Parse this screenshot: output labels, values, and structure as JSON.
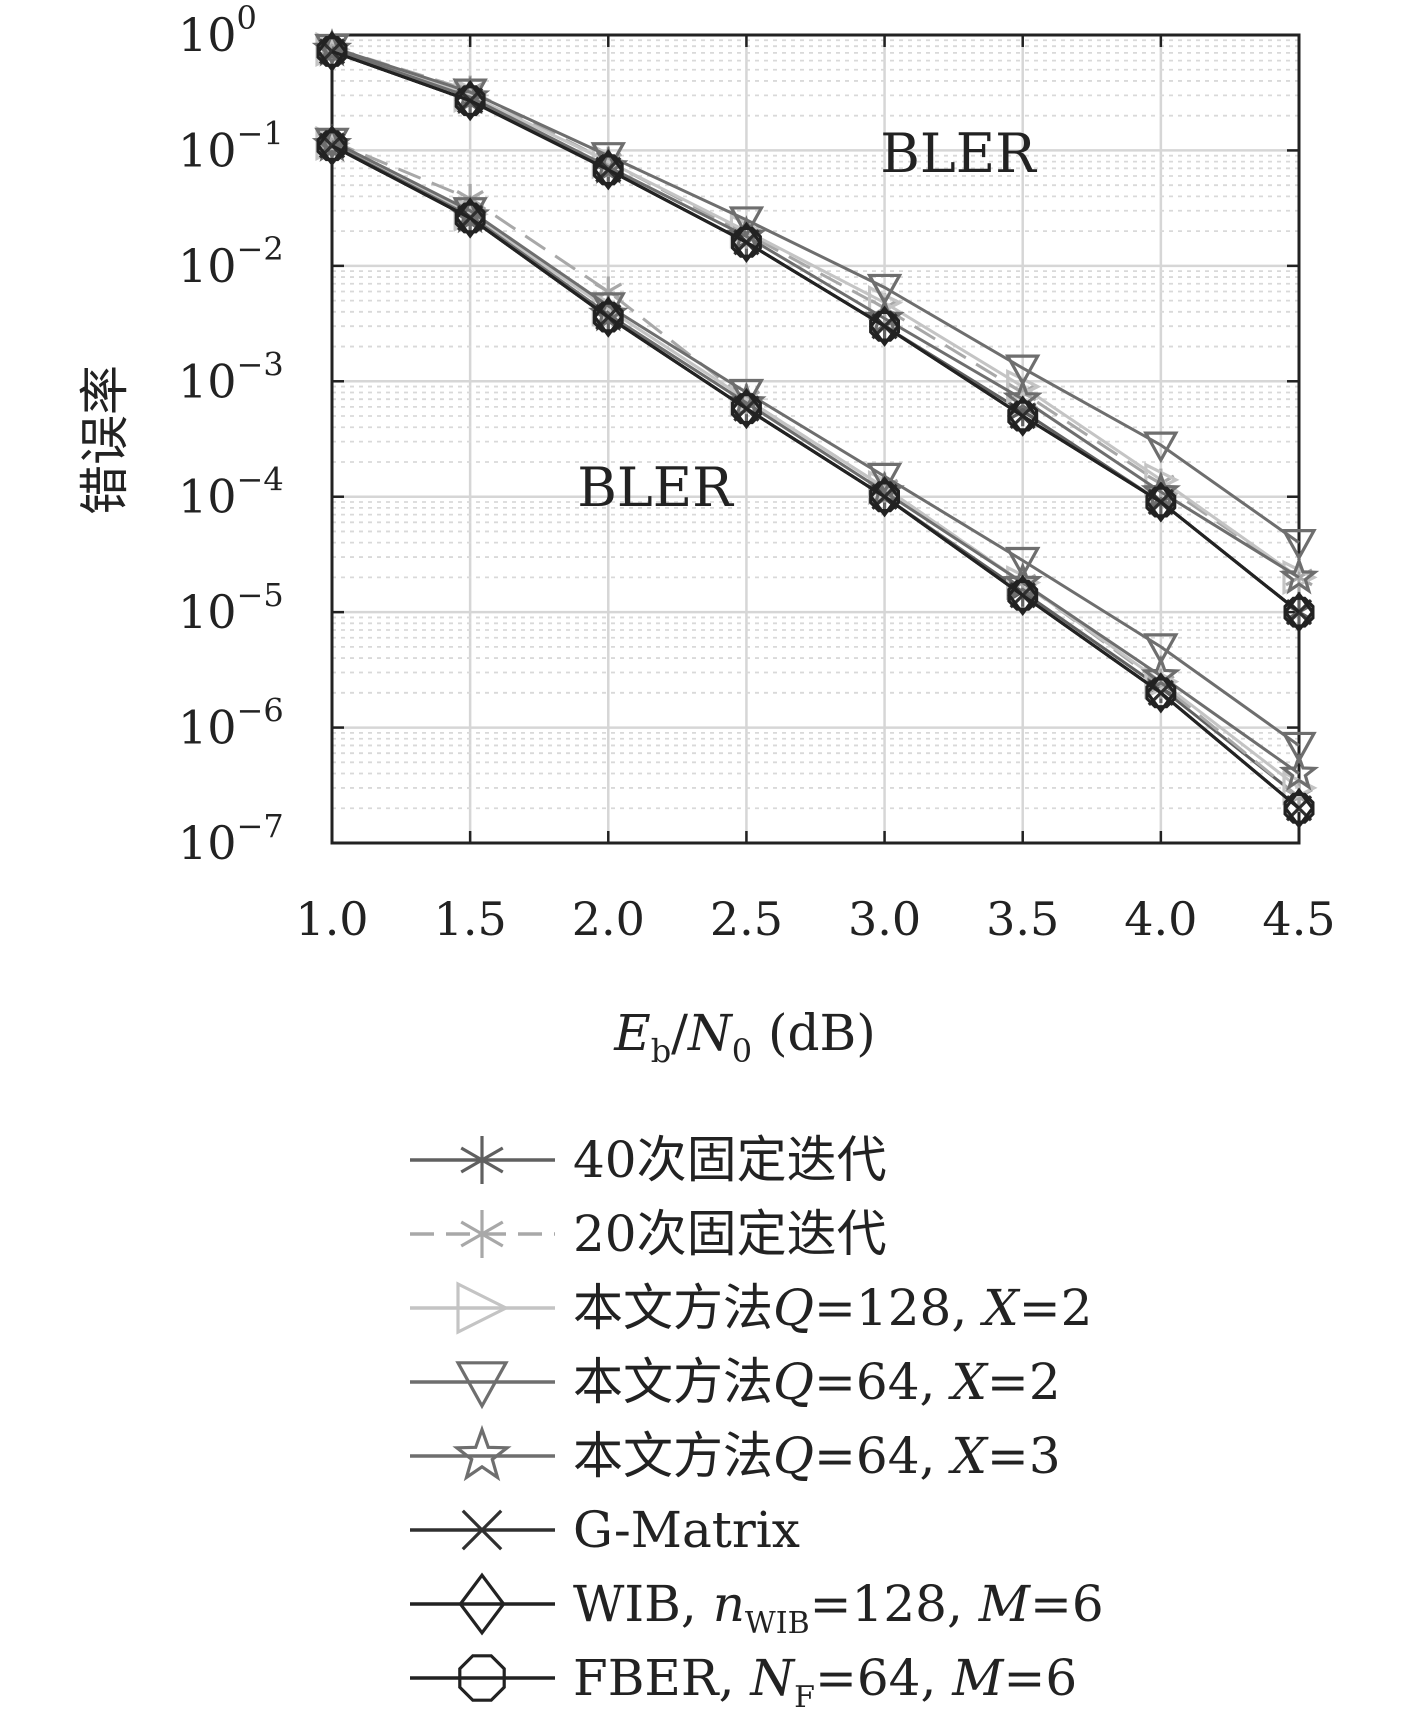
{
  "chart_data": {
    "type": "line",
    "title": "",
    "xlabel": "E_b/N_0 (dB)",
    "xlabel_main": "E",
    "xlabel_sub1": "b",
    "xlabel_slash": "/N",
    "xlabel_sub2": "0",
    "xlabel_unit": " (dB)",
    "ylabel": "错误率",
    "yscale": "log",
    "xlim": [
      1.0,
      4.5
    ],
    "ylim": [
      1e-07,
      1
    ],
    "grid": true,
    "x": [
      1.0,
      1.5,
      2.0,
      2.5,
      3.0,
      3.5,
      4.0,
      4.5
    ],
    "xtick_labels": [
      "1.0",
      "1.5",
      "2.0",
      "2.5",
      "3.0",
      "3.5",
      "4.0",
      "4.5"
    ],
    "ytick_exponents": [
      "0",
      "−1",
      "−2",
      "−3",
      "−4",
      "−5",
      "−6",
      "−7"
    ],
    "ytick_base": "10",
    "annotations": [
      {
        "text": "BLER",
        "x": 3.25,
        "y": 0.1
      },
      {
        "text": "BLER",
        "x": 2.17,
        "y": 0.0001
      }
    ],
    "legend_position": "below",
    "series": [
      {
        "name": "40次固定迭代",
        "marker": "asterisk",
        "color": "#606060",
        "dash": "none",
        "groups": [
          [
            0.72,
            0.27,
            0.068,
            0.016,
            0.003,
            0.00055,
            9e-05,
            1e-05
          ],
          [
            0.11,
            0.026,
            0.0036,
            0.00058,
            0.0001,
            1.5e-05,
            2.2e-06,
            2.5e-07
          ]
        ]
      },
      {
        "name": "20次固定迭代",
        "marker": "asterisk",
        "color": "#a8a8a8",
        "dash": "24 12",
        "groups": [
          [
            0.78,
            0.33,
            0.08,
            0.019,
            0.0043,
            0.0008,
            0.00013,
            2e-05
          ],
          [
            0.12,
            0.038,
            0.006,
            0.0007,
            0.00012,
            1.8e-05,
            2.4e-06,
            2.5e-07
          ]
        ]
      },
      {
        "name": "本文方法",
        "label_math": "Q=128, X=2",
        "marker": "triangle-right",
        "color": "#c4c4c4",
        "dash": "none",
        "groups": [
          [
            0.75,
            0.3,
            0.08,
            0.02,
            0.0048,
            0.0009,
            0.00014,
            2e-05
          ],
          [
            0.115,
            0.028,
            0.0042,
            0.0007,
            0.00012,
            1.8e-05,
            2.5e-06,
            3e-07
          ]
        ]
      },
      {
        "name": "本文方法",
        "label_math": "Q=64, X=2",
        "marker": "triangle-down",
        "color": "#6e6e6e",
        "dash": "none",
        "groups": [
          [
            0.78,
            0.32,
            0.09,
            0.025,
            0.0065,
            0.0013,
            0.00028,
            4e-05
          ],
          [
            0.12,
            0.03,
            0.0045,
            0.0008,
            0.00015,
            2.8e-05,
            5e-06,
            7e-07
          ]
        ]
      },
      {
        "name": "本文方法",
        "label_math": "Q=64, X=3",
        "marker": "star",
        "color": "#6e6e6e",
        "dash": "none",
        "groups": [
          [
            0.75,
            0.29,
            0.072,
            0.018,
            0.0035,
            0.0007,
            0.00011,
            2e-05
          ],
          [
            0.112,
            0.027,
            0.0038,
            0.00065,
            0.00011,
            1.8e-05,
            2.8e-06,
            4e-07
          ]
        ]
      },
      {
        "name": "G-Matrix",
        "marker": "x",
        "color": "#303030",
        "dash": "none",
        "groups": [
          [
            0.72,
            0.27,
            0.068,
            0.016,
            0.003,
            0.0005,
            9e-05,
            1e-05
          ],
          [
            0.11,
            0.026,
            0.0036,
            0.00058,
            0.0001,
            1.4e-05,
            2e-06,
            2e-07
          ]
        ]
      },
      {
        "name": "WIB, ",
        "label_math": "n_WIB=128, M=6",
        "marker": "diamond",
        "color": "#222222",
        "dash": "none",
        "groups": [
          [
            0.72,
            0.27,
            0.068,
            0.016,
            0.003,
            0.0005,
            9e-05,
            1e-05
          ],
          [
            0.11,
            0.026,
            0.0036,
            0.00058,
            0.0001,
            1.4e-05,
            2e-06,
            2e-07
          ]
        ]
      },
      {
        "name": "FBER, ",
        "label_math": "N_F=64, M=6",
        "marker": "octagon",
        "color": "#222222",
        "dash": "none",
        "groups": [
          [
            0.72,
            0.27,
            0.068,
            0.016,
            0.003,
            0.0005,
            9e-05,
            1e-05
          ],
          [
            0.11,
            0.026,
            0.0036,
            0.00058,
            0.0001,
            1.4e-05,
            2e-06,
            2e-07
          ]
        ]
      }
    ]
  },
  "legend": {
    "items": [
      {
        "label": "40次固定迭代"
      },
      {
        "label": "20次固定迭代"
      },
      {
        "label": "本文方法",
        "q": "Q",
        "qval": "=128, ",
        "x": "X",
        "xval": "=2"
      },
      {
        "label": "本文方法",
        "q": "Q",
        "qval": "=64, ",
        "x": "X",
        "xval": "=2"
      },
      {
        "label": "本文方法",
        "q": "Q",
        "qval": "=64, ",
        "x": "X",
        "xval": "=3"
      },
      {
        "label": "G-Matrix"
      },
      {
        "label": "WIB, ",
        "n": "n",
        "nsub": "WIB",
        "nval": "=128, ",
        "m": "M",
        "mval": "=6"
      },
      {
        "label": "FBER, ",
        "n": "N",
        "nsub": "F",
        "nval": "=64, ",
        "m": "M",
        "mval": "=6"
      }
    ]
  }
}
